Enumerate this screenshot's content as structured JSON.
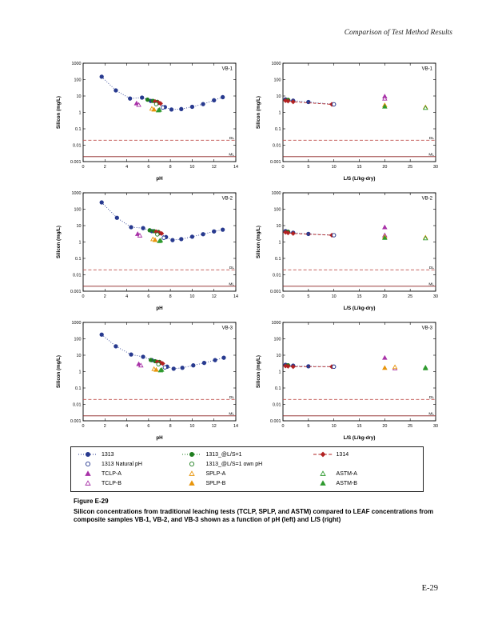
{
  "page": {
    "header": "Comparison of Test Method Results",
    "page_number": "E-29"
  },
  "figure": {
    "label": "Figure E-29",
    "caption": "Silicon concentrations from traditional leaching tests (TCLP, SPLP, and ASTM) compared to LEAF concentrations from composite samples VB-1, VB-2, and VB-3 shown as a function of pH (left) and L/S (right)"
  },
  "chart_shared": {
    "axes": {
      "y": {
        "label": "Silicon (mg/L)",
        "lim": [
          0.001,
          1000
        ],
        "ticks": [
          {
            "v": 1000,
            "t": "1000"
          },
          {
            "v": 100,
            "t": "100"
          },
          {
            "v": 10,
            "t": "10"
          },
          {
            "v": 1,
            "t": "1"
          },
          {
            "v": 0.1,
            "t": "0.1"
          },
          {
            "v": 0.01,
            "t": "0.01"
          },
          {
            "v": 0.001,
            "t": "0.001"
          }
        ]
      },
      "ph": {
        "label": "pH",
        "lim": [
          0,
          14
        ],
        "ticks": [
          0,
          2,
          4,
          6,
          8,
          10,
          12,
          14
        ]
      },
      "ls": {
        "label": "L/S (L/kg-dry)",
        "lim": [
          0,
          30
        ],
        "ticks": [
          0,
          5,
          10,
          15,
          20,
          25,
          30
        ]
      }
    },
    "thresholds": [
      {
        "y": 0.02,
        "label": "DL",
        "dash": true,
        "color": "#c0504d"
      },
      {
        "y": 0.002,
        "label": "ML",
        "dash": false,
        "color": "#8b2020"
      }
    ],
    "styles": {
      "1313": {
        "color": "#283a8f",
        "marker": "circle",
        "filled": true,
        "dash": "dotted"
      },
      "1313_L1": {
        "color": "#1e7d1e",
        "marker": "circle",
        "filled": true,
        "dash": "dotted"
      },
      "1314": {
        "color": "#b22222",
        "marker": "diamond",
        "filled": true,
        "dash": "dashed"
      },
      "1313_nat": {
        "color": "#283a8f",
        "marker": "circle",
        "filled": false
      },
      "1313_L1_own": {
        "color": "#1e7d1e",
        "marker": "circle",
        "filled": false
      },
      "TCLP_A": {
        "color": "#a832a8",
        "marker": "triangle",
        "filled": true
      },
      "TCLP_B": {
        "color": "#a832a8",
        "marker": "triangle",
        "filled": false
      },
      "SPLP_A": {
        "color": "#e8950a",
        "marker": "triangle",
        "filled": false
      },
      "SPLP_B": {
        "color": "#e8950a",
        "marker": "triangle",
        "filled": true
      },
      "ASTM_A": {
        "color": "#2f9a2f",
        "marker": "triangle",
        "filled": false
      },
      "ASTM_B": {
        "color": "#2f9a2f",
        "marker": "triangle",
        "filled": true
      }
    }
  },
  "chart_data": [
    {
      "type": "scatter",
      "panel": "VB-1",
      "x": "ph",
      "series": [
        {
          "style": "1313",
          "points": [
            [
              1.7,
              150
            ],
            [
              3.0,
              22
            ],
            [
              4.3,
              7
            ],
            [
              5.4,
              8
            ],
            [
              6.2,
              5
            ],
            [
              6.9,
              3.8
            ],
            [
              7.5,
              2.1
            ],
            [
              8.1,
              1.5
            ],
            [
              9.0,
              1.6
            ],
            [
              10.0,
              2.2
            ],
            [
              11.0,
              3.2
            ],
            [
              12.0,
              5.5
            ],
            [
              12.8,
              8.5
            ]
          ]
        },
        {
          "style": "1313_L1",
          "points": [
            [
              5.9,
              6
            ],
            [
              6.4,
              5
            ],
            [
              6.8,
              4.4
            ]
          ]
        },
        {
          "style": "1314",
          "points": [
            [
              6.6,
              4.6
            ],
            [
              6.9,
              4.0
            ],
            [
              7.1,
              3.5
            ]
          ]
        },
        {
          "style": "1313_nat",
          "points": [
            [
              7.3,
              2.0
            ]
          ]
        },
        {
          "style": "1313_L1_own",
          "points": [
            [
              6.7,
              3.2
            ]
          ]
        },
        {
          "style": "TCLP_A",
          "points": [
            [
              4.9,
              3.6
            ]
          ]
        },
        {
          "style": "TCLP_B",
          "points": [
            [
              5.1,
              2.9
            ]
          ]
        },
        {
          "style": "SPLP_A",
          "points": [
            [
              6.3,
              1.7
            ]
          ]
        },
        {
          "style": "SPLP_B",
          "points": [
            [
              6.5,
              1.5
            ]
          ]
        },
        {
          "style": "ASTM_A",
          "points": [
            [
              6.9,
              1.35
            ]
          ]
        },
        {
          "style": "ASTM_B",
          "points": [
            [
              7.0,
              1.45
            ]
          ]
        }
      ]
    },
    {
      "type": "scatter",
      "panel": "VB-1",
      "x": "ls",
      "series": [
        {
          "style": "1313",
          "points": [
            [
              0.5,
              6.2
            ],
            [
              1,
              5.8
            ],
            [
              2,
              5.2
            ],
            [
              5,
              4.3
            ],
            [
              10,
              3.1
            ]
          ]
        },
        {
          "style": "1313_L1",
          "points": [
            [
              1,
              5.8
            ]
          ]
        },
        {
          "style": "1314",
          "points": [
            [
              0.5,
              5.2
            ],
            [
              1,
              4.9
            ],
            [
              2,
              4.4
            ],
            [
              9.6,
              3.1
            ]
          ]
        },
        {
          "style": "1313_nat",
          "points": [
            [
              10,
              3.1
            ]
          ]
        },
        {
          "style": "TCLP_A",
          "points": [
            [
              20,
              9.5
            ]
          ]
        },
        {
          "style": "TCLP_B",
          "points": [
            [
              20,
              7.0
            ]
          ]
        },
        {
          "style": "SPLP_A",
          "points": [
            [
              28,
              2.1
            ]
          ]
        },
        {
          "style": "SPLP_B",
          "points": [
            [
              20,
              2.8
            ]
          ]
        },
        {
          "style": "ASTM_A",
          "points": [
            [
              28,
              1.9
            ]
          ]
        },
        {
          "style": "ASTM_B",
          "points": [
            [
              20,
              2.3
            ]
          ]
        }
      ]
    },
    {
      "type": "scatter",
      "panel": "VB-2",
      "x": "ph",
      "series": [
        {
          "style": "1313",
          "points": [
            [
              1.7,
              260
            ],
            [
              3.1,
              30
            ],
            [
              4.4,
              8
            ],
            [
              5.5,
              7
            ],
            [
              6.3,
              4.6
            ],
            [
              7.0,
              3.4
            ],
            [
              7.6,
              2.0
            ],
            [
              8.2,
              1.3
            ],
            [
              9.0,
              1.5
            ],
            [
              10.0,
              2.1
            ],
            [
              11.0,
              3.0
            ],
            [
              12.0,
              4.4
            ],
            [
              12.8,
              5.6
            ]
          ]
        },
        {
          "style": "1313_L1",
          "points": [
            [
              6.1,
              5.2
            ],
            [
              6.5,
              4.6
            ],
            [
              6.9,
              4.1
            ]
          ]
        },
        {
          "style": "1314",
          "points": [
            [
              6.7,
              4.2
            ],
            [
              7.0,
              3.7
            ],
            [
              7.2,
              3.3
            ]
          ]
        },
        {
          "style": "1313_nat",
          "points": [
            [
              7.4,
              1.8
            ]
          ]
        },
        {
          "style": "1313_L1_own",
          "points": [
            [
              6.8,
              2.9
            ]
          ]
        },
        {
          "style": "TCLP_A",
          "points": [
            [
              5.0,
              3.1
            ]
          ]
        },
        {
          "style": "TCLP_B",
          "points": [
            [
              5.2,
              2.5
            ]
          ]
        },
        {
          "style": "SPLP_A",
          "points": [
            [
              6.4,
              1.5
            ]
          ]
        },
        {
          "style": "SPLP_B",
          "points": [
            [
              6.6,
              1.35
            ]
          ]
        },
        {
          "style": "ASTM_A",
          "points": [
            [
              7.0,
              1.15
            ]
          ]
        },
        {
          "style": "ASTM_B",
          "points": [
            [
              7.1,
              1.25
            ]
          ]
        }
      ]
    },
    {
      "type": "scatter",
      "panel": "VB-2",
      "x": "ls",
      "series": [
        {
          "style": "1313",
          "points": [
            [
              0.5,
              4.6
            ],
            [
              1,
              4.2
            ],
            [
              2,
              3.7
            ],
            [
              5,
              3.1
            ],
            [
              10,
              2.6
            ]
          ]
        },
        {
          "style": "1313_L1",
          "points": [
            [
              1,
              4.2
            ]
          ]
        },
        {
          "style": "1314",
          "points": [
            [
              0.5,
              3.9
            ],
            [
              1,
              3.6
            ],
            [
              2,
              3.3
            ],
            [
              9.6,
              2.6
            ]
          ]
        },
        {
          "style": "1313_nat",
          "points": [
            [
              10,
              2.6
            ]
          ]
        },
        {
          "style": "TCLP_A",
          "points": [
            [
              20,
              8.0
            ]
          ]
        },
        {
          "style": "TCLP_B",
          "points": [
            [
              20,
              2.6
            ]
          ]
        },
        {
          "style": "SPLP_A",
          "points": [
            [
              28,
              1.9
            ]
          ]
        },
        {
          "style": "SPLP_B",
          "points": [
            [
              20,
              2.1
            ]
          ]
        },
        {
          "style": "ASTM_A",
          "points": [
            [
              28,
              1.7
            ]
          ]
        },
        {
          "style": "ASTM_B",
          "points": [
            [
              20,
              1.8
            ]
          ]
        }
      ]
    },
    {
      "type": "scatter",
      "panel": "VB-3",
      "x": "ph",
      "series": [
        {
          "style": "1313",
          "points": [
            [
              1.7,
              180
            ],
            [
              3.0,
              35
            ],
            [
              4.4,
              11
            ],
            [
              5.5,
              8
            ],
            [
              6.3,
              5
            ],
            [
              7.1,
              3.4
            ],
            [
              7.7,
              2.0
            ],
            [
              8.3,
              1.5
            ],
            [
              9.1,
              1.7
            ],
            [
              10.1,
              2.4
            ],
            [
              11.1,
              3.4
            ],
            [
              12.1,
              5.0
            ],
            [
              12.9,
              7.0
            ]
          ]
        },
        {
          "style": "1313_L1",
          "points": [
            [
              6.2,
              5.1
            ],
            [
              6.6,
              4.3
            ],
            [
              7.0,
              3.9
            ]
          ]
        },
        {
          "style": "1314",
          "points": [
            [
              6.8,
              3.9
            ],
            [
              7.1,
              3.5
            ],
            [
              7.3,
              3.1
            ]
          ]
        },
        {
          "style": "1313_nat",
          "points": [
            [
              7.5,
              1.8
            ]
          ]
        },
        {
          "style": "1313_L1_own",
          "points": [
            [
              6.9,
              2.8
            ]
          ]
        },
        {
          "style": "TCLP_A",
          "points": [
            [
              5.1,
              2.9
            ]
          ]
        },
        {
          "style": "TCLP_B",
          "points": [
            [
              5.3,
              2.4
            ]
          ]
        },
        {
          "style": "SPLP_A",
          "points": [
            [
              6.5,
              1.45
            ]
          ]
        },
        {
          "style": "SPLP_B",
          "points": [
            [
              6.7,
              1.3
            ]
          ]
        },
        {
          "style": "ASTM_A",
          "points": [
            [
              7.1,
              1.2
            ]
          ]
        },
        {
          "style": "ASTM_B",
          "points": [
            [
              7.2,
              1.3
            ]
          ]
        }
      ]
    },
    {
      "type": "scatter",
      "panel": "VB-3",
      "x": "ls",
      "series": [
        {
          "style": "1313",
          "points": [
            [
              0.5,
              2.6
            ],
            [
              1,
              2.4
            ],
            [
              2,
              2.3
            ],
            [
              5,
              2.1
            ],
            [
              10,
              2.0
            ]
          ]
        },
        {
          "style": "1313_L1",
          "points": [
            [
              1,
              2.4
            ]
          ]
        },
        {
          "style": "1314",
          "points": [
            [
              0.5,
              2.2
            ],
            [
              1,
              2.1
            ],
            [
              2,
              2.0
            ],
            [
              9.6,
              2.0
            ]
          ]
        },
        {
          "style": "1313_nat",
          "points": [
            [
              10,
              2.0
            ]
          ]
        },
        {
          "style": "TCLP_A",
          "points": [
            [
              20,
              7.0
            ]
          ]
        },
        {
          "style": "TCLP_B",
          "points": [
            [
              22,
              1.6
            ]
          ]
        },
        {
          "style": "SPLP_A",
          "points": [
            [
              22,
              1.9
            ]
          ]
        },
        {
          "style": "SPLP_B",
          "points": [
            [
              20,
              1.7
            ]
          ]
        },
        {
          "style": "ASTM_A",
          "points": [
            [
              28,
              1.8
            ]
          ]
        },
        {
          "style": "ASTM_B",
          "points": [
            [
              28,
              1.6
            ]
          ]
        }
      ]
    }
  ],
  "legend": {
    "rows": [
      [
        {
          "label": "1313",
          "style": "1313",
          "line": true
        },
        {
          "label": "1313_@L/S=1",
          "style": "1313_L1",
          "line": true
        },
        {
          "label": "1314",
          "style": "1314",
          "line": true
        }
      ],
      [
        {
          "label": "1313 Natural pH",
          "style": "1313_nat",
          "line": false
        },
        {
          "label": "1313_@L/S=1 own pH",
          "style": "1313_L1_own",
          "line": false
        }
      ],
      [
        {
          "label": "TCLP-A",
          "style": "TCLP_A",
          "line": false
        },
        {
          "label": "SPLP-A",
          "style": "SPLP_A",
          "line": false
        },
        {
          "label": "ASTM-A",
          "style": "ASTM_A",
          "line": false
        }
      ],
      [
        {
          "label": "TCLP-B",
          "style": "TCLP_B",
          "line": false
        },
        {
          "label": "SPLP-B",
          "style": "SPLP_B",
          "line": false
        },
        {
          "label": "ASTM-B",
          "style": "ASTM_B",
          "line": false
        }
      ]
    ]
  }
}
